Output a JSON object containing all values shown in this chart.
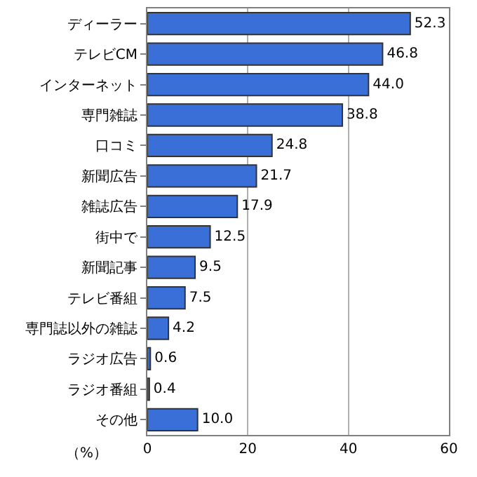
{
  "chart_data": {
    "type": "bar",
    "orientation": "horizontal",
    "xlabel": "（%）",
    "categories": [
      "ディーラー",
      "テレビCM",
      "インターネット",
      "専門雑誌",
      "口コミ",
      "新聞広告",
      "雑誌広告",
      "街中で",
      "新聞記事",
      "テレビ番組",
      "専門誌以外の雑誌",
      "ラジオ広告",
      "ラジオ番組",
      "その他"
    ],
    "values": [
      52.3,
      46.8,
      44.0,
      38.8,
      24.8,
      21.7,
      17.9,
      12.5,
      9.5,
      7.5,
      4.2,
      0.6,
      0.4,
      10.0
    ],
    "value_labels": [
      "52.3",
      "46.8",
      "44.0",
      "38.8",
      "24.8",
      "21.7",
      "17.9",
      "12.5",
      "9.5",
      "7.5",
      "4.2",
      "0.6",
      "0.4",
      "10.0"
    ],
    "color": "#3a6fd8",
    "xlim": [
      0,
      60
    ],
    "xticks": [
      0,
      20,
      40,
      60
    ],
    "grid": "x"
  }
}
